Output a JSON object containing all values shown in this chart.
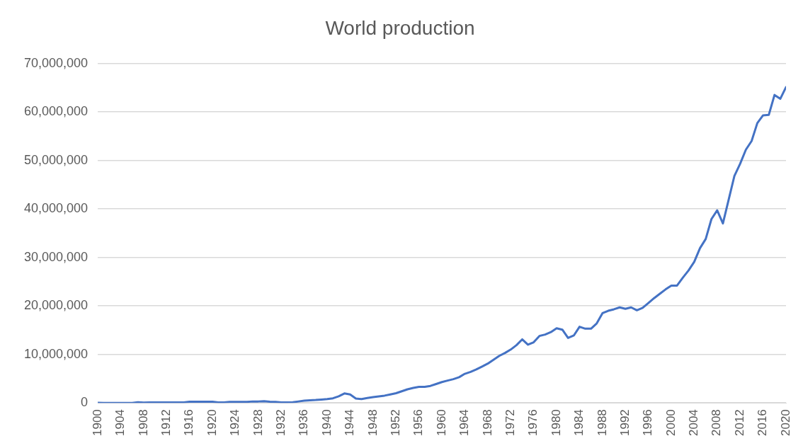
{
  "chart_data": {
    "type": "line",
    "title": "World production",
    "x": [
      1900,
      1901,
      1902,
      1903,
      1904,
      1905,
      1906,
      1907,
      1908,
      1909,
      1910,
      1911,
      1912,
      1913,
      1914,
      1915,
      1916,
      1917,
      1918,
      1919,
      1920,
      1921,
      1922,
      1923,
      1924,
      1925,
      1926,
      1927,
      1928,
      1929,
      1930,
      1931,
      1932,
      1933,
      1934,
      1935,
      1936,
      1937,
      1938,
      1939,
      1940,
      1941,
      1942,
      1943,
      1944,
      1945,
      1946,
      1947,
      1948,
      1949,
      1950,
      1951,
      1952,
      1953,
      1954,
      1955,
      1956,
      1957,
      1958,
      1959,
      1960,
      1961,
      1962,
      1963,
      1964,
      1965,
      1966,
      1967,
      1968,
      1969,
      1970,
      1971,
      1972,
      1973,
      1974,
      1975,
      1976,
      1977,
      1978,
      1979,
      1980,
      1981,
      1982,
      1983,
      1984,
      1985,
      1986,
      1987,
      1988,
      1989,
      1990,
      1991,
      1992,
      1993,
      1994,
      1995,
      1996,
      1997,
      1998,
      1999,
      2000,
      2001,
      2002,
      2003,
      2004,
      2005,
      2006,
      2007,
      2008,
      2009,
      2010,
      2011,
      2012,
      2013,
      2014,
      2015,
      2016,
      2017,
      2018,
      2019,
      2020
    ],
    "series": [
      {
        "color": "#4472c4",
        "values": [
          10000,
          0,
          0,
          0,
          0,
          0,
          0,
          150000,
          50000,
          100000,
          100000,
          100000,
          100000,
          100000,
          100000,
          100000,
          250000,
          250000,
          250000,
          250000,
          250000,
          100000,
          100000,
          200000,
          200000,
          200000,
          200000,
          300000,
          300000,
          350000,
          250000,
          200000,
          100000,
          100000,
          150000,
          300000,
          450000,
          550000,
          600000,
          700000,
          800000,
          950000,
          1370000,
          1950000,
          1740000,
          900000,
          800000,
          1000000,
          1200000,
          1350000,
          1500000,
          1750000,
          2000000,
          2400000,
          2800000,
          3100000,
          3300000,
          3300000,
          3500000,
          3900000,
          4300000,
          4600000,
          4900000,
          5300000,
          6000000,
          6400000,
          6900000,
          7500000,
          8100000,
          8900000,
          9700000,
          10300000,
          11000000,
          11900000,
          13100000,
          12000000,
          12500000,
          13800000,
          14100000,
          14600000,
          15400000,
          15100000,
          13400000,
          13900000,
          15700000,
          15300000,
          15300000,
          16400000,
          18500000,
          19000000,
          19300000,
          19700000,
          19400000,
          19700000,
          19100000,
          19600000,
          20600000,
          21600000,
          22500000,
          23400000,
          24200000,
          24200000,
          25800000,
          27300000,
          29100000,
          31900000,
          33800000,
          37900000,
          39700000,
          37000000,
          41900000,
          46800000,
          49300000,
          52200000,
          54000000,
          57700000,
          59300000,
          59400000,
          63500000,
          62700000,
          65100000
        ]
      }
    ],
    "xlim": [
      1900,
      2020
    ],
    "xticks": [
      1900,
      1904,
      1908,
      1912,
      1916,
      1920,
      1924,
      1928,
      1932,
      1936,
      1940,
      1944,
      1948,
      1952,
      1956,
      1960,
      1964,
      1968,
      1972,
      1976,
      1980,
      1984,
      1988,
      1992,
      1996,
      2000,
      2004,
      2008,
      2012,
      2016,
      2020
    ],
    "ylim": [
      0,
      70000000
    ],
    "yticks": [
      0,
      {
        "value": 10000000,
        "label": "10,000,000"
      },
      {
        "value": 20000000,
        "label": "20,000,000"
      },
      {
        "value": 30000000,
        "label": "30,000,000"
      },
      {
        "value": 40000000,
        "label": "40,000,000"
      },
      {
        "value": 50000000,
        "label": "50,000,000"
      },
      {
        "value": 60000000,
        "label": "60,000,000"
      },
      {
        "value": 70000000,
        "label": "70,000,000"
      }
    ],
    "grid": "y",
    "legend": false,
    "marker": "none",
    "line_style": "solid"
  }
}
